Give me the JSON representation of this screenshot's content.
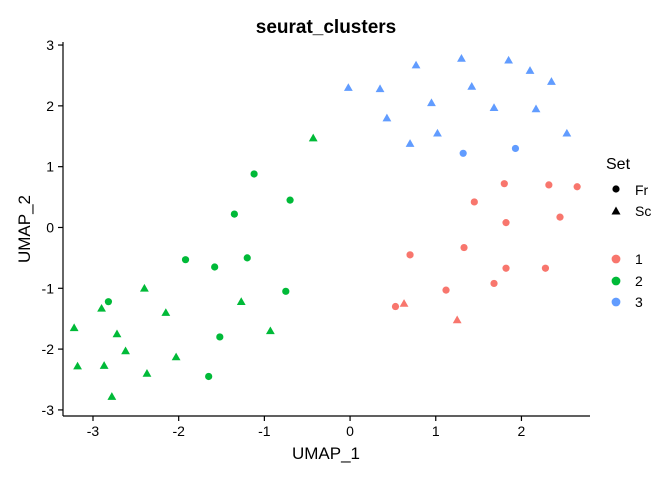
{
  "chart_data": {
    "type": "scatter",
    "title": "seurat_clusters",
    "xlabel": "UMAP_1",
    "ylabel": "UMAP_2",
    "xlim": [
      -3.35,
      2.8
    ],
    "ylim": [
      -3.1,
      3.05
    ],
    "xticks": [
      -3,
      -2,
      -1,
      0,
      1,
      2
    ],
    "yticks": [
      -3,
      -2,
      -1,
      0,
      1,
      2,
      3
    ],
    "grid": false,
    "legend": {
      "placement": "right",
      "shape_title": "Set",
      "shapes": [
        {
          "label": "Fr",
          "shape": "circle"
        },
        {
          "label": "Sc",
          "shape": "triangle"
        }
      ],
      "colors": [
        {
          "label": "1",
          "color": "#F8766D"
        },
        {
          "label": "2",
          "color": "#00BA38"
        },
        {
          "label": "3",
          "color": "#619CFF"
        }
      ]
    },
    "series": [
      {
        "name": "1",
        "color": "#F8766D",
        "points": [
          {
            "x": 1.8,
            "y": 0.72,
            "shape": "circle"
          },
          {
            "x": 2.32,
            "y": 0.7,
            "shape": "circle"
          },
          {
            "x": 2.65,
            "y": 0.67,
            "shape": "circle"
          },
          {
            "x": 1.45,
            "y": 0.42,
            "shape": "circle"
          },
          {
            "x": 2.45,
            "y": 0.17,
            "shape": "circle"
          },
          {
            "x": 1.82,
            "y": 0.08,
            "shape": "circle"
          },
          {
            "x": 1.33,
            "y": -0.33,
            "shape": "circle"
          },
          {
            "x": 0.7,
            "y": -0.45,
            "shape": "circle"
          },
          {
            "x": 1.82,
            "y": -0.67,
            "shape": "circle"
          },
          {
            "x": 2.28,
            "y": -0.67,
            "shape": "circle"
          },
          {
            "x": 1.68,
            "y": -0.92,
            "shape": "circle"
          },
          {
            "x": 1.12,
            "y": -1.03,
            "shape": "circle"
          },
          {
            "x": 0.53,
            "y": -1.3,
            "shape": "circle"
          },
          {
            "x": 0.63,
            "y": -1.25,
            "shape": "triangle"
          },
          {
            "x": 1.25,
            "y": -1.52,
            "shape": "triangle"
          }
        ]
      },
      {
        "name": "2",
        "color": "#00BA38",
        "points": [
          {
            "x": -0.43,
            "y": 1.47,
            "shape": "triangle"
          },
          {
            "x": -1.12,
            "y": 0.88,
            "shape": "circle"
          },
          {
            "x": -0.7,
            "y": 0.45,
            "shape": "circle"
          },
          {
            "x": -1.35,
            "y": 0.22,
            "shape": "circle"
          },
          {
            "x": -1.92,
            "y": -0.53,
            "shape": "circle"
          },
          {
            "x": -1.2,
            "y": -0.5,
            "shape": "circle"
          },
          {
            "x": -1.58,
            "y": -0.65,
            "shape": "circle"
          },
          {
            "x": -0.75,
            "y": -1.05,
            "shape": "circle"
          },
          {
            "x": -2.4,
            "y": -1.0,
            "shape": "triangle"
          },
          {
            "x": -2.82,
            "y": -1.22,
            "shape": "circle"
          },
          {
            "x": -1.27,
            "y": -1.22,
            "shape": "triangle"
          },
          {
            "x": -2.9,
            "y": -1.33,
            "shape": "triangle"
          },
          {
            "x": -2.15,
            "y": -1.4,
            "shape": "triangle"
          },
          {
            "x": -3.22,
            "y": -1.65,
            "shape": "triangle"
          },
          {
            "x": -0.93,
            "y": -1.7,
            "shape": "triangle"
          },
          {
            "x": -2.72,
            "y": -1.75,
            "shape": "triangle"
          },
          {
            "x": -1.52,
            "y": -1.8,
            "shape": "circle"
          },
          {
            "x": -2.62,
            "y": -2.03,
            "shape": "triangle"
          },
          {
            "x": -2.03,
            "y": -2.13,
            "shape": "triangle"
          },
          {
            "x": -3.18,
            "y": -2.28,
            "shape": "triangle"
          },
          {
            "x": -2.87,
            "y": -2.27,
            "shape": "triangle"
          },
          {
            "x": -2.37,
            "y": -2.4,
            "shape": "triangle"
          },
          {
            "x": -1.65,
            "y": -2.45,
            "shape": "circle"
          },
          {
            "x": -2.78,
            "y": -2.78,
            "shape": "triangle"
          }
        ]
      },
      {
        "name": "3",
        "color": "#619CFF",
        "points": [
          {
            "x": 1.3,
            "y": 2.78,
            "shape": "triangle"
          },
          {
            "x": 1.85,
            "y": 2.75,
            "shape": "triangle"
          },
          {
            "x": 0.77,
            "y": 2.67,
            "shape": "triangle"
          },
          {
            "x": 2.1,
            "y": 2.58,
            "shape": "triangle"
          },
          {
            "x": 2.35,
            "y": 2.4,
            "shape": "triangle"
          },
          {
            "x": 1.42,
            "y": 2.32,
            "shape": "triangle"
          },
          {
            "x": -0.02,
            "y": 2.3,
            "shape": "triangle"
          },
          {
            "x": 0.35,
            "y": 2.28,
            "shape": "triangle"
          },
          {
            "x": 0.95,
            "y": 2.05,
            "shape": "triangle"
          },
          {
            "x": 1.68,
            "y": 1.97,
            "shape": "triangle"
          },
          {
            "x": 2.17,
            "y": 1.95,
            "shape": "triangle"
          },
          {
            "x": 0.43,
            "y": 1.8,
            "shape": "triangle"
          },
          {
            "x": 1.02,
            "y": 1.55,
            "shape": "triangle"
          },
          {
            "x": 2.53,
            "y": 1.55,
            "shape": "triangle"
          },
          {
            "x": 0.7,
            "y": 1.38,
            "shape": "triangle"
          },
          {
            "x": 1.93,
            "y": 1.3,
            "shape": "circle"
          },
          {
            "x": 1.32,
            "y": 1.22,
            "shape": "circle"
          }
        ]
      }
    ]
  }
}
